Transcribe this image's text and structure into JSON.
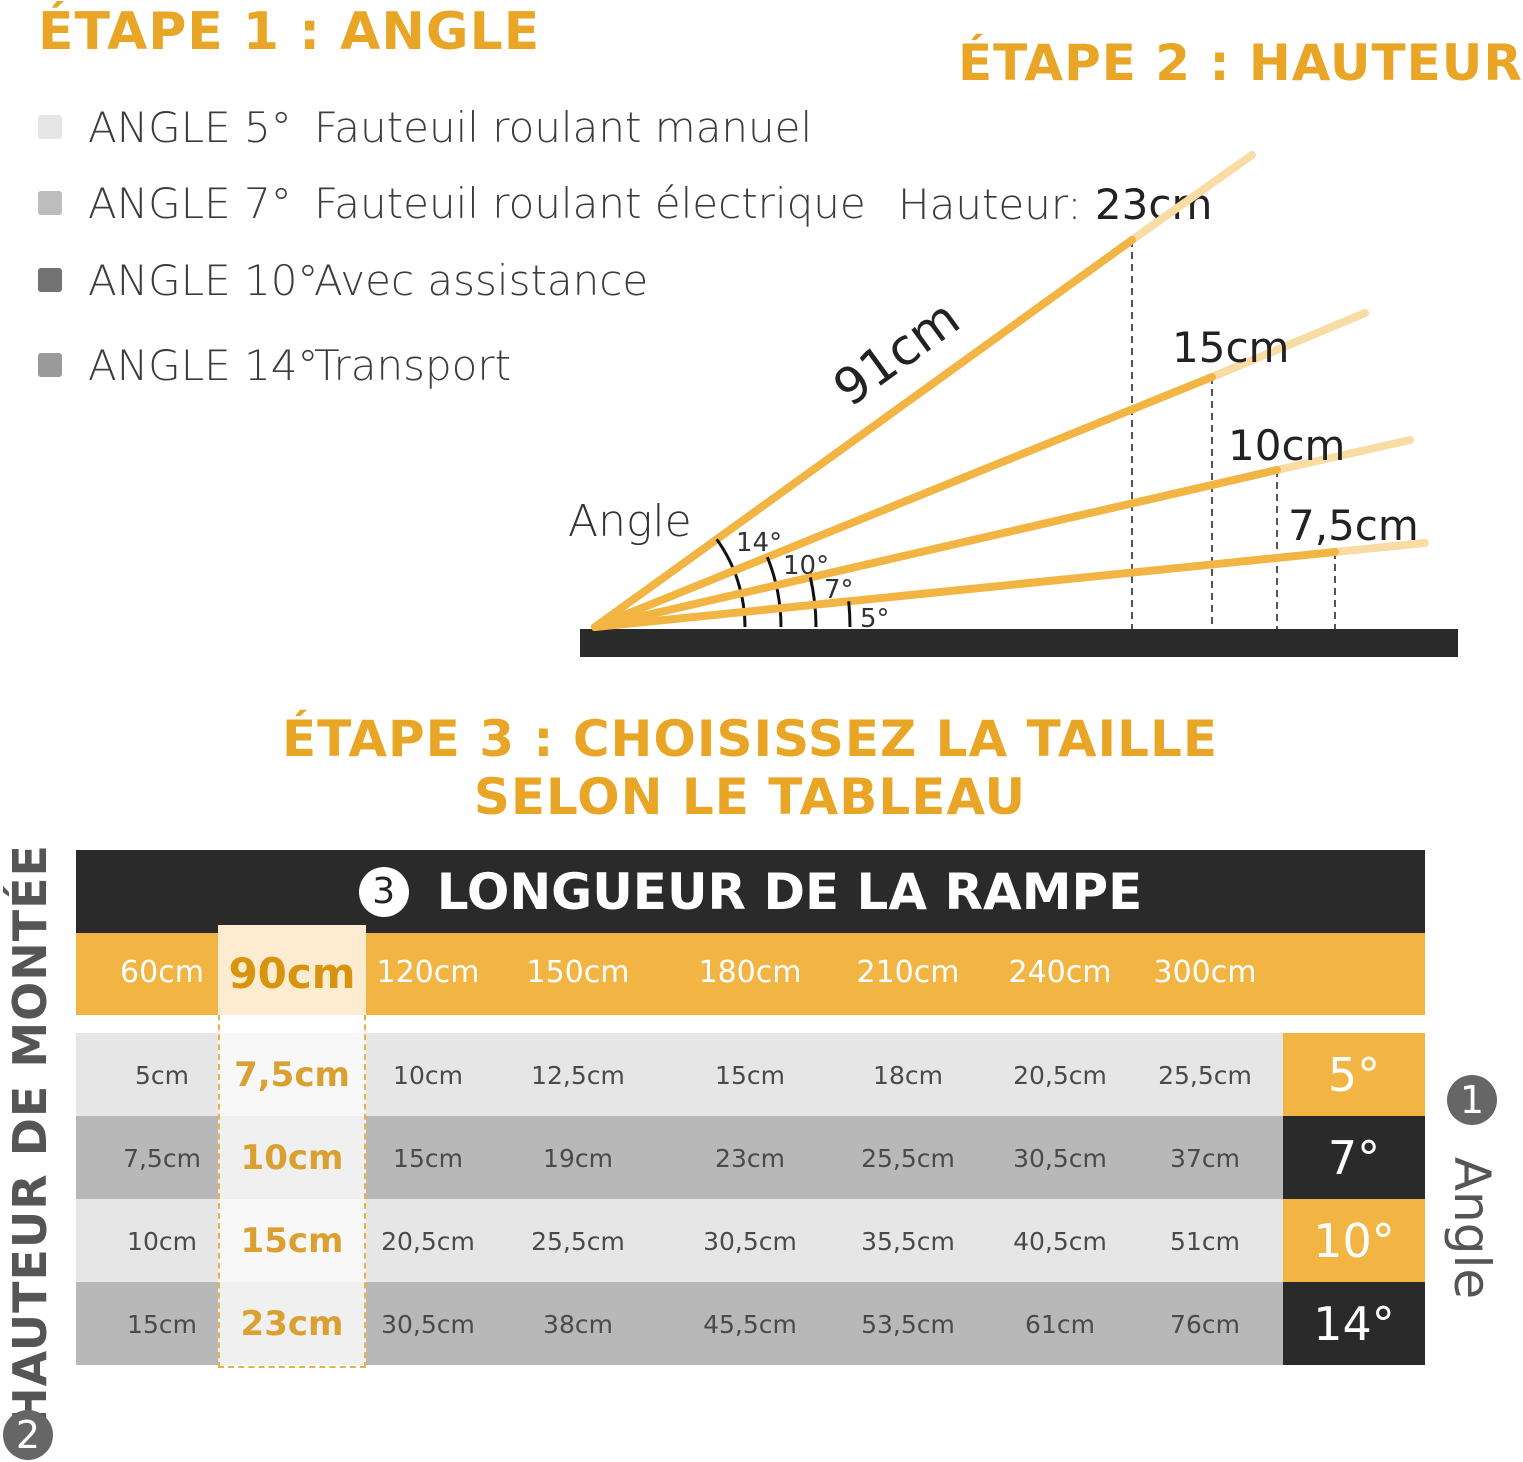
{
  "step1": {
    "title": "ÉTAPE 1 : ANGLE",
    "legend": [
      {
        "angle": "ANGLE 5°",
        "use": "Fauteuil roulant manuel",
        "color": "#e6e6e6"
      },
      {
        "angle": "ANGLE 7°",
        "use": "Fauteuil roulant électrique",
        "color": "#bdbdbd"
      },
      {
        "angle": "ANGLE 10°",
        "use": "Avec assistance",
        "color": "#737373"
      },
      {
        "angle": "ANGLE 14°",
        "use": "Transport",
        "color": "#9a9a9a"
      }
    ]
  },
  "step2": {
    "title": "ÉTAPE 2 : HAUTEUR",
    "height_label": "Hauteur:",
    "height_value": "23cm",
    "length_label": "91cm",
    "angle_label": "Angle",
    "rays": [
      {
        "angle": "14°",
        "height": "23cm"
      },
      {
        "angle": "10°",
        "height": "15cm"
      },
      {
        "angle": "7°",
        "height": "10cm"
      },
      {
        "angle": "5°",
        "height": "7,5cm"
      }
    ]
  },
  "step3": {
    "title_line1": "ÉTAPE 3 : CHOISISSEZ LA TAILLE",
    "title_line2": "SELON LE TABLEAU"
  },
  "table": {
    "header_number": "3",
    "header": "LONGUEUR DE LA RAMPE",
    "lengths": [
      "60cm",
      "90cm",
      "120cm",
      "150cm",
      "180cm",
      "210cm",
      "240cm",
      "300cm"
    ],
    "highlighted_length": "90cm",
    "rows": [
      {
        "angle": "5°",
        "values": [
          "5cm",
          "7,5cm",
          "10cm",
          "12,5cm",
          "15cm",
          "18cm",
          "20,5cm",
          "25,5cm"
        ]
      },
      {
        "angle": "7°",
        "values": [
          "7,5cm",
          "10cm",
          "15cm",
          "19cm",
          "23cm",
          "25,5cm",
          "30,5cm",
          "37cm"
        ]
      },
      {
        "angle": "10°",
        "values": [
          "10cm",
          "15cm",
          "20,5cm",
          "25,5cm",
          "30,5cm",
          "35,5cm",
          "40,5cm",
          "51cm"
        ]
      },
      {
        "angle": "14°",
        "values": [
          "15cm",
          "23cm",
          "30,5cm",
          "38cm",
          "45,5cm",
          "53,5cm",
          "61cm",
          "76cm"
        ]
      }
    ],
    "side_left_number": "2",
    "side_left_label": "HAUTEUR DE MONTÉE",
    "side_right_number": "1",
    "side_right_label": "Angle"
  },
  "colors": {
    "accent": "#f2b544",
    "title": "#e8a526",
    "dark": "#2a2a2a",
    "row_light": "#e6e6e6",
    "row_dark": "#b8b8b8"
  }
}
